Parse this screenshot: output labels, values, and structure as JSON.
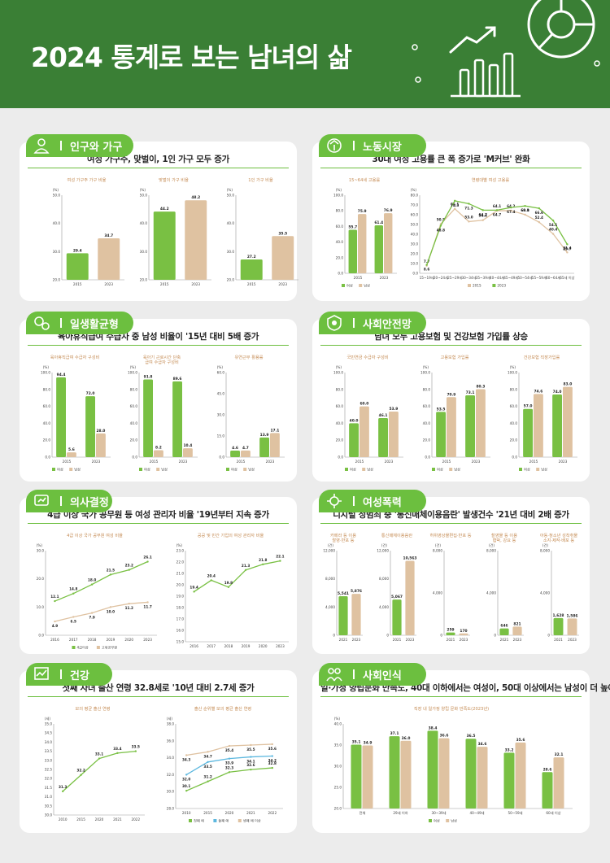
{
  "page": {
    "title": "2024 통계로 보는 남녀의 삶",
    "colors": {
      "female": "#79c043",
      "male": "#dfc2a1",
      "brand": "#3a7f35",
      "male_alt": "#5db8df"
    }
  },
  "sections": [
    {
      "id": "population",
      "tab": "인구와 가구",
      "icon": "person-icon",
      "subtitle": "여성 가구주, 맞벌이, 1인 가구 모두 증가"
    },
    {
      "id": "labor",
      "tab": "노동시장",
      "icon": "worker-icon",
      "subtitle": "30대 여성 고용률 큰 폭 증가로 'M커브' 완화"
    },
    {
      "id": "balance",
      "tab": "일생활균형",
      "icon": "gears-icon",
      "subtitle": "육아휴직급여 수급자 중 남성 비율이 '15년 대비 5배 증가"
    },
    {
      "id": "safety",
      "tab": "사회안전망",
      "icon": "safety-net-icon",
      "subtitle": "남녀 모두 고용보험 및 건강보험 가입률 상승"
    },
    {
      "id": "decision",
      "tab": "의사결정",
      "icon": "decision-icon",
      "subtitle": "4급 이상 국가 공무원 등 여성 관리자 비율 '19년부터 지속 증가"
    },
    {
      "id": "violence",
      "tab": "여성폭력",
      "icon": "virus-icon",
      "subtitle": "디지털 성범죄 중 '통신매체이용음란' 발생건수 '21년 대비 2배 증가"
    },
    {
      "id": "health",
      "tab": "건강",
      "icon": "health-chart-icon",
      "subtitle": "첫째 자녀 출산 연령 32.8세로 '10년 대비 2.7세 증가"
    },
    {
      "id": "perception",
      "tab": "사회인식",
      "icon": "people-icon",
      "subtitle": "일·가정 양립문화 만족도, 40대 이하에서는 여성이, 50대 이상에서는 남성이 더 높아"
    }
  ],
  "legend_labels": {
    "female": "여성",
    "male": "남성",
    "first": "첫째 애",
    "second": "둘째 애",
    "third": "셋째 애 이상"
  },
  "chart_data": [
    {
      "type": "bar",
      "title": "여성 가구주 가구 비율",
      "unit": "(%)",
      "categories": [
        "2015",
        "2023"
      ],
      "values": [
        29.4,
        34.7
      ],
      "colors": [
        "#79c043",
        "#dfc2a1"
      ],
      "ylim": [
        20,
        50
      ],
      "yticks": [
        "20.0",
        "30.0",
        "40.0",
        "50.0"
      ]
    },
    {
      "type": "bar",
      "title": "맞벌이 가구 비율",
      "unit": "(%)",
      "categories": [
        "2015",
        "2023"
      ],
      "values": [
        44.2,
        48.2
      ],
      "colors": [
        "#79c043",
        "#dfc2a1"
      ],
      "ylim": [
        20,
        50
      ],
      "yticks": [
        "20.0",
        "30.0",
        "40.0",
        "50.0"
      ]
    },
    {
      "type": "bar",
      "title": "1인 가구 비율",
      "unit": "(%)",
      "categories": [
        "2015",
        "2023"
      ],
      "values": [
        27.2,
        35.5
      ],
      "colors": [
        "#79c043",
        "#dfc2a1"
      ],
      "ylim": [
        20,
        50
      ],
      "yticks": [
        "20.0",
        "30.0",
        "40.0",
        "50.0"
      ]
    },
    {
      "type": "bar",
      "title": "15~64세 고용률",
      "unit": "(%)",
      "categories": [
        "2015",
        "2023"
      ],
      "series": [
        {
          "name": "여성",
          "values": [
            55.7,
            61.4
          ]
        },
        {
          "name": "남성",
          "values": [
            75.9,
            76.9
          ]
        }
      ],
      "ylim": [
        0,
        100
      ],
      "yticks": [
        "0.0",
        "20.0",
        "40.0",
        "60.0",
        "80.0",
        "100.0"
      ],
      "legend": [
        "여성",
        "남성"
      ]
    },
    {
      "type": "line",
      "title": "연령대별 여성 고용률",
      "unit": "(%)",
      "categories": [
        "15~19세",
        "20~24세",
        "25~29세",
        "30~34세",
        "35~39세",
        "40~44세",
        "45~49세",
        "50~54세",
        "55~59세",
        "60~64세",
        "65세 이상"
      ],
      "series": [
        {
          "name": "2015",
          "values": [
            7.7,
            50.5,
            66.1,
            53.0,
            54.4,
            64.1,
            64.2,
            60.1,
            52.4,
            40.4,
            21.4
          ]
        },
        {
          "name": "2023",
          "values": [
            8.6,
            48.8,
            74.3,
            71.3,
            64.7,
            64.7,
            67.4,
            69.0,
            66.6,
            54.1,
            29.7
          ]
        }
      ],
      "ylim": [
        0,
        80
      ],
      "yticks": [
        "0.0",
        "10.0",
        "20.0",
        "30.0",
        "40.0",
        "50.0",
        "60.0",
        "70.0",
        "80.0"
      ],
      "legend": [
        "2015",
        "2023"
      ]
    },
    {
      "type": "bar",
      "title": "육아휴직급여 수급자 구성비",
      "unit": "(%)",
      "categories": [
        "2015",
        "2023"
      ],
      "series": [
        {
          "name": "여성",
          "values": [
            94.4,
            72.0
          ]
        },
        {
          "name": "남성",
          "values": [
            5.6,
            28.0
          ]
        }
      ],
      "ylim": [
        0,
        100
      ],
      "yticks": [
        "0.0",
        "20.0",
        "40.0",
        "60.0",
        "80.0",
        "100.0"
      ],
      "legend": [
        "여성",
        "남성"
      ]
    },
    {
      "type": "bar",
      "title": "육아기 근로시간 단축급여 수급자 구성비",
      "unit": "(%)",
      "categories": [
        "2015",
        "2023"
      ],
      "series": [
        {
          "name": "여성",
          "values": [
            91.8,
            89.6
          ]
        },
        {
          "name": "남성",
          "values": [
            8.2,
            10.4
          ]
        }
      ],
      "ylim": [
        0,
        100
      ],
      "yticks": [
        "0.0",
        "20.0",
        "40.0",
        "60.0",
        "80.0",
        "100.0"
      ],
      "legend": [
        "여성",
        "남성"
      ]
    },
    {
      "type": "bar",
      "title": "유연근무 활용률",
      "unit": "(%)",
      "categories": [
        "2015",
        "2023"
      ],
      "series": [
        {
          "name": "여성",
          "values": [
            4.6,
            13.9
          ]
        },
        {
          "name": "남성",
          "values": [
            4.7,
            17.1
          ]
        }
      ],
      "ylim": [
        0,
        60
      ],
      "yticks": [
        "0.0",
        "15.0",
        "30.0",
        "45.0",
        "60.0"
      ],
      "legend": [
        "여성",
        "남성"
      ]
    },
    {
      "type": "bar",
      "title": "국민연금 수급자 구성비",
      "unit": "(%)",
      "categories": [
        "2015",
        "2023"
      ],
      "series": [
        {
          "name": "여성",
          "values": [
            40.0,
            46.1
          ]
        },
        {
          "name": "남성",
          "values": [
            60.0,
            53.9
          ]
        }
      ],
      "ylim": [
        0,
        100
      ],
      "yticks": [
        "0.0",
        "20.0",
        "40.0",
        "60.0",
        "80.0",
        "100.0"
      ],
      "legend": [
        "여성",
        "남성"
      ]
    },
    {
      "type": "bar",
      "title": "고용보험 가입률",
      "unit": "(%)",
      "categories": [
        "2015",
        "2023"
      ],
      "series": [
        {
          "name": "여성",
          "values": [
            53.5,
            73.1
          ]
        },
        {
          "name": "남성",
          "values": [
            70.9,
            80.3
          ]
        }
      ],
      "ylim": [
        0,
        100
      ],
      "yticks": [
        "0.0",
        "20.0",
        "40.0",
        "60.0",
        "80.0",
        "100.0"
      ],
      "legend": [
        "여성",
        "남성"
      ]
    },
    {
      "type": "bar",
      "title": "건강보험 직장가입률",
      "unit": "(%)",
      "categories": [
        "2015",
        "2023"
      ],
      "series": [
        {
          "name": "여성",
          "values": [
            57.0,
            74.0
          ]
        },
        {
          "name": "남성",
          "values": [
            74.6,
            83.0
          ]
        }
      ],
      "ylim": [
        0,
        100
      ],
      "yticks": [
        "0.0",
        "20.0",
        "40.0",
        "60.0",
        "80.0",
        "100.0"
      ],
      "legend": [
        "여성",
        "남성"
      ]
    },
    {
      "type": "line",
      "title": "4급 이상 국가 공무원 여성 비율",
      "unit": "(%)",
      "categories": [
        "2016",
        "2017",
        "2018",
        "2019",
        "2020",
        "2023"
      ],
      "series": [
        {
          "name": "4급이상",
          "values": [
            12.1,
            14.8,
            18.0,
            21.5,
            23.2,
            26.1
          ]
        },
        {
          "name": "고위공무원",
          "values": [
            4.9,
            6.5,
            7.9,
            10.0,
            11.2,
            11.7
          ]
        }
      ],
      "ylim": [
        0,
        30
      ],
      "yticks": [
        "0.0",
        "10.0",
        "20.0",
        "30.0"
      ],
      "legend": [
        "4급이상",
        "고위공무원"
      ]
    },
    {
      "type": "line",
      "title": "공공 및 민간 기업의 여성 관리자 비율",
      "unit": "(%)",
      "categories": [
        "2016",
        "2017",
        "2018",
        "2019",
        "2020",
        "2023"
      ],
      "values": [
        19.4,
        20.4,
        19.8,
        21.3,
        21.8,
        22.1
      ],
      "ylim": [
        15,
        23
      ],
      "yticks": [
        "15.0",
        "16.0",
        "17.0",
        "18.0",
        "19.0",
        "20.0",
        "21.0",
        "22.0",
        "23.0"
      ]
    },
    {
      "type": "bar",
      "title": "카메라 등 이용 촬영·반포 등",
      "unit": "(건)",
      "categories": [
        "2021",
        "2023"
      ],
      "values": [
        5541,
        5876
      ],
      "colors": [
        "#79c043",
        "#dfc2a1"
      ],
      "ylim": [
        0,
        12000
      ],
      "yticks": [
        "0",
        "4,000",
        "8,000",
        "12,000"
      ]
    },
    {
      "type": "bar",
      "title": "통신매체이용음란",
      "unit": "(건)",
      "categories": [
        "2021",
        "2023"
      ],
      "values": [
        5067,
        10563
      ],
      "colors": [
        "#79c043",
        "#dfc2a1"
      ],
      "ylim": [
        0,
        12000
      ],
      "yticks": [
        "0",
        "4,000",
        "8,000",
        "12,000"
      ]
    },
    {
      "type": "bar",
      "title": "허위영상물편집·반포 등",
      "unit": "(건)",
      "categories": [
        "2021",
        "2023"
      ],
      "values": [
        259,
        170
      ],
      "colors": [
        "#79c043",
        "#dfc2a1"
      ],
      "ylim": [
        0,
        8000
      ],
      "yticks": [
        "0",
        "4,000",
        "8,000"
      ]
    },
    {
      "type": "bar",
      "title": "촬영물 등 이용협박, 강요 등",
      "unit": "(건)",
      "categories": [
        "2021",
        "2023"
      ],
      "values": [
        646,
        821
      ],
      "colors": [
        "#79c043",
        "#dfc2a1"
      ],
      "ylim": [
        0,
        8000
      ],
      "yticks": [
        "0",
        "4,000",
        "8,000"
      ]
    },
    {
      "type": "bar",
      "title": "아동·청소년 성착취물 소지·제작·배포 등",
      "unit": "(건)",
      "categories": [
        "2021",
        "2023"
      ],
      "values": [
        1628,
        1586
      ],
      "colors": [
        "#79c043",
        "#dfc2a1"
      ],
      "ylim": [
        0,
        8000
      ],
      "yticks": [
        "0",
        "4,000",
        "8,000"
      ]
    },
    {
      "type": "line",
      "title": "모의 평균 출산 연령",
      "unit": "(세)",
      "categories": [
        "2010",
        "2015",
        "2020",
        "2021",
        "2022"
      ],
      "values": [
        31.3,
        32.2,
        33.1,
        33.4,
        33.5
      ],
      "ylim": [
        30,
        35
      ],
      "yticks": [
        "30.0",
        "30.5",
        "31.0",
        "31.5",
        "32.0",
        "32.5",
        "33.0",
        "33.5",
        "34.0",
        "34.5",
        "35.0"
      ]
    },
    {
      "type": "line",
      "title": "출산 순위별 모의 평균 출산 연령",
      "unit": "(세)",
      "categories": [
        "2010",
        "2015",
        "2020",
        "2021",
        "2022"
      ],
      "series": [
        {
          "name": "첫째 애",
          "values": [
            30.1,
            31.2,
            32.3,
            32.6,
            32.8
          ]
        },
        {
          "name": "둘째 애",
          "values": [
            32.0,
            33.5,
            33.9,
            34.1,
            34.2
          ]
        },
        {
          "name": "셋째 애 이상",
          "values": [
            34.3,
            34.7,
            35.4,
            35.5,
            35.6
          ]
        }
      ],
      "ylim": [
        28,
        38
      ],
      "yticks": [
        "28.0",
        "30.0",
        "32.0",
        "34.0",
        "36.0",
        "38.0"
      ],
      "legend": [
        "첫째 애",
        "둘째 애",
        "셋째 애 이상"
      ]
    },
    {
      "type": "bar",
      "title": "직장 내 일가정 양립 문화 만족도(2023년)",
      "unit": "(%)",
      "categories": [
        "전체",
        "29세 이하",
        "30~39세",
        "40~49세",
        "50~59세",
        "60세 이상"
      ],
      "series": [
        {
          "name": "여성",
          "values": [
            35.1,
            37.1,
            38.4,
            36.5,
            33.2,
            28.6
          ]
        },
        {
          "name": "남성",
          "values": [
            34.9,
            36.0,
            36.6,
            34.6,
            35.6,
            32.1
          ]
        }
      ],
      "ylim": [
        20,
        40
      ],
      "yticks": [
        "20.0",
        "25.0",
        "30.0",
        "35.0",
        "40.0"
      ],
      "legend": [
        "여성",
        "남성"
      ]
    }
  ]
}
